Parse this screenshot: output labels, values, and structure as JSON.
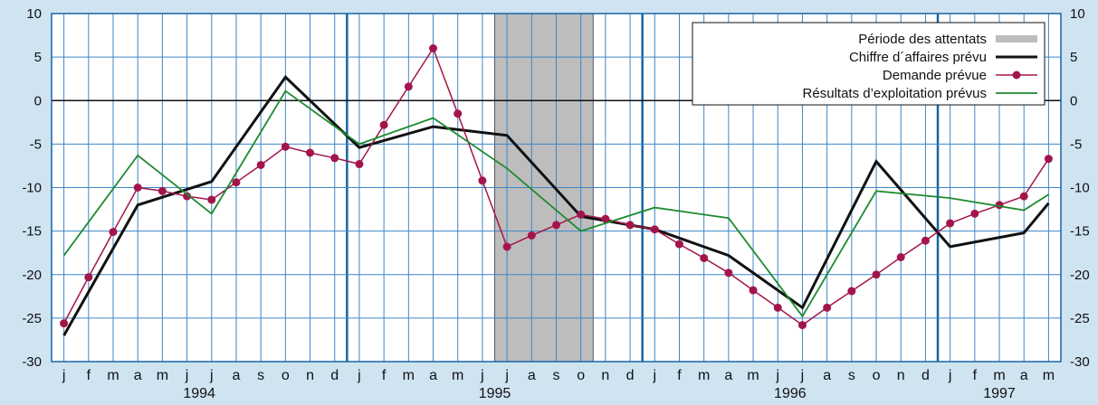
{
  "chart_data": {
    "type": "line",
    "title": "",
    "xlabel": "",
    "ylabel": "",
    "ylim": [
      -30,
      10
    ],
    "yticks": [
      10,
      5,
      0,
      -5,
      -10,
      -15,
      -20,
      -25,
      -30
    ],
    "grid": true,
    "legend_placement": "top-right",
    "months": [
      "j",
      "f",
      "m",
      "a",
      "m",
      "j",
      "j",
      "a",
      "s",
      "o",
      "n",
      "d",
      "j",
      "f",
      "m",
      "a",
      "m",
      "j",
      "j",
      "a",
      "s",
      "o",
      "n",
      "d",
      "j",
      "f",
      "m",
      "a",
      "m",
      "j",
      "j",
      "a",
      "s",
      "o",
      "n",
      "d",
      "j",
      "f",
      "m",
      "a",
      "m"
    ],
    "years": [
      {
        "label": "1994",
        "start": 0
      },
      {
        "label": "1995",
        "start": 12
      },
      {
        "label": "1996",
        "start": 24
      },
      {
        "label": "1997",
        "start": 36
      }
    ],
    "highlight": {
      "name": "Période des attentats",
      "from": 18,
      "to": 21,
      "color": "#bdbdbd"
    },
    "series": [
      {
        "name": "Chiffre d´affaires prévu",
        "color": "#111111",
        "marker": false,
        "points": [
          [
            0,
            -27
          ],
          [
            3,
            -12
          ],
          [
            6,
            -9.3
          ],
          [
            9,
            2.7
          ],
          [
            12,
            -5.4
          ],
          [
            15,
            -3
          ],
          [
            18,
            -4
          ],
          [
            21,
            -13.3
          ],
          [
            24,
            -14.8
          ],
          [
            27,
            -17.8
          ],
          [
            30,
            -23.8
          ],
          [
            33,
            -7
          ],
          [
            36,
            -16.8
          ],
          [
            39,
            -15.2
          ],
          [
            40,
            -11.8
          ]
        ]
      },
      {
        "name": "Demande prévue",
        "color": "#a3154a",
        "marker": true,
        "points": [
          [
            0,
            -25.6
          ],
          [
            1,
            -20.3
          ],
          [
            2,
            -15.1
          ],
          [
            3,
            -10
          ],
          [
            4,
            -10.4
          ],
          [
            5,
            -11
          ],
          [
            6,
            -11.4
          ],
          [
            7,
            -9.4
          ],
          [
            8,
            -7.4
          ],
          [
            9,
            -5.3
          ],
          [
            10,
            -6
          ],
          [
            11,
            -6.6
          ],
          [
            12,
            -7.3
          ],
          [
            13,
            -2.8
          ],
          [
            14,
            1.6
          ],
          [
            15,
            6
          ],
          [
            16,
            -1.5
          ],
          [
            17,
            -9.2
          ],
          [
            18,
            -16.8
          ],
          [
            19,
            -15.5
          ],
          [
            20,
            -14.3
          ],
          [
            21,
            -13.1
          ],
          [
            22,
            -13.6
          ],
          [
            23,
            -14.3
          ],
          [
            24,
            -14.8
          ],
          [
            25,
            -16.5
          ],
          [
            26,
            -18.1
          ],
          [
            27,
            -19.8
          ],
          [
            28,
            -21.8
          ],
          [
            29,
            -23.8
          ],
          [
            30,
            -25.8
          ],
          [
            31,
            -23.8
          ],
          [
            32,
            -21.9
          ],
          [
            33,
            -20
          ],
          [
            34,
            -18
          ],
          [
            35,
            -16.1
          ],
          [
            36,
            -14.1
          ],
          [
            37,
            -13
          ],
          [
            38,
            -12
          ],
          [
            39,
            -11
          ],
          [
            40,
            -6.7
          ]
        ]
      },
      {
        "name": "Résultats d’exploitation prévus",
        "color": "#1e8a2e",
        "marker": false,
        "points": [
          [
            0,
            -17.8
          ],
          [
            3,
            -6.3
          ],
          [
            6,
            -13
          ],
          [
            9,
            1.1
          ],
          [
            12,
            -5
          ],
          [
            15,
            -2
          ],
          [
            18,
            -7.8
          ],
          [
            21,
            -15
          ],
          [
            24,
            -12.3
          ],
          [
            27,
            -13.5
          ],
          [
            30,
            -24.8
          ],
          [
            33,
            -10.4
          ],
          [
            36,
            -11.2
          ],
          [
            39,
            -12.6
          ],
          [
            40,
            -10.8
          ]
        ]
      }
    ]
  }
}
